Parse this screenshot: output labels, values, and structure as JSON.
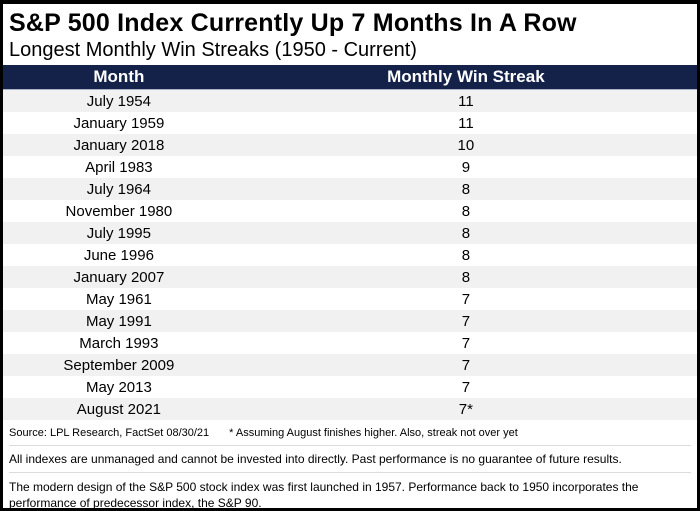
{
  "header": {
    "title": "S&P 500 Index Currently Up 7 Months In A Row",
    "subtitle": "Longest Monthly Win Streaks (1950 - Current)"
  },
  "table": {
    "columns": {
      "month": "Month",
      "streak": "Monthly Win Streak"
    },
    "rows": [
      {
        "month": "July 1954",
        "streak": "11"
      },
      {
        "month": "January 1959",
        "streak": "11"
      },
      {
        "month": "January 2018",
        "streak": "10"
      },
      {
        "month": "April 1983",
        "streak": "9"
      },
      {
        "month": "July 1964",
        "streak": "8"
      },
      {
        "month": "November 1980",
        "streak": "8"
      },
      {
        "month": "July 1995",
        "streak": "8"
      },
      {
        "month": "June 1996",
        "streak": "8"
      },
      {
        "month": "January 2007",
        "streak": "8"
      },
      {
        "month": "May 1961",
        "streak": "7"
      },
      {
        "month": "May 1991",
        "streak": "7"
      },
      {
        "month": "March 1993",
        "streak": "7"
      },
      {
        "month": "September 2009",
        "streak": "7"
      },
      {
        "month": "May 2013",
        "streak": "7"
      },
      {
        "month": "August 2021",
        "streak": "7*"
      }
    ]
  },
  "footer": {
    "source": "Source: LPL Research, FactSet 08/30/21",
    "footnote": "* Assuming August finishes higher. Also, streak not over yet",
    "disclosure1": "All indexes are unmanaged and cannot be invested into directly. Past performance is no guarantee of future results.",
    "disclosure2": "The modern design of the S&P 500 stock index was first launched in 1957. Performance back to 1950 incorporates the performance of predecessor index, the S&P 90."
  },
  "colors": {
    "header_bg": "#14224a",
    "header_text": "#ffffff",
    "row_alt": "#f1f1f2",
    "border": "#000000"
  },
  "chart_data": {
    "type": "table",
    "title": "S&P 500 Index Currently Up 7 Months In A Row",
    "subtitle": "Longest Monthly Win Streaks (1950 - Current)",
    "columns": [
      "Month",
      "Monthly Win Streak"
    ],
    "rows": [
      [
        "July 1954",
        11
      ],
      [
        "January 1959",
        11
      ],
      [
        "January 2018",
        10
      ],
      [
        "April 1983",
        9
      ],
      [
        "July 1964",
        8
      ],
      [
        "November 1980",
        8
      ],
      [
        "July 1995",
        8
      ],
      [
        "June 1996",
        8
      ],
      [
        "January 2007",
        8
      ],
      [
        "May 1961",
        7
      ],
      [
        "May 1991",
        7
      ],
      [
        "March 1993",
        7
      ],
      [
        "September 2009",
        7
      ],
      [
        "May 2013",
        7
      ],
      [
        "August 2021",
        "7*"
      ]
    ],
    "notes": "* Assuming August finishes higher. Also, streak not over yet"
  }
}
